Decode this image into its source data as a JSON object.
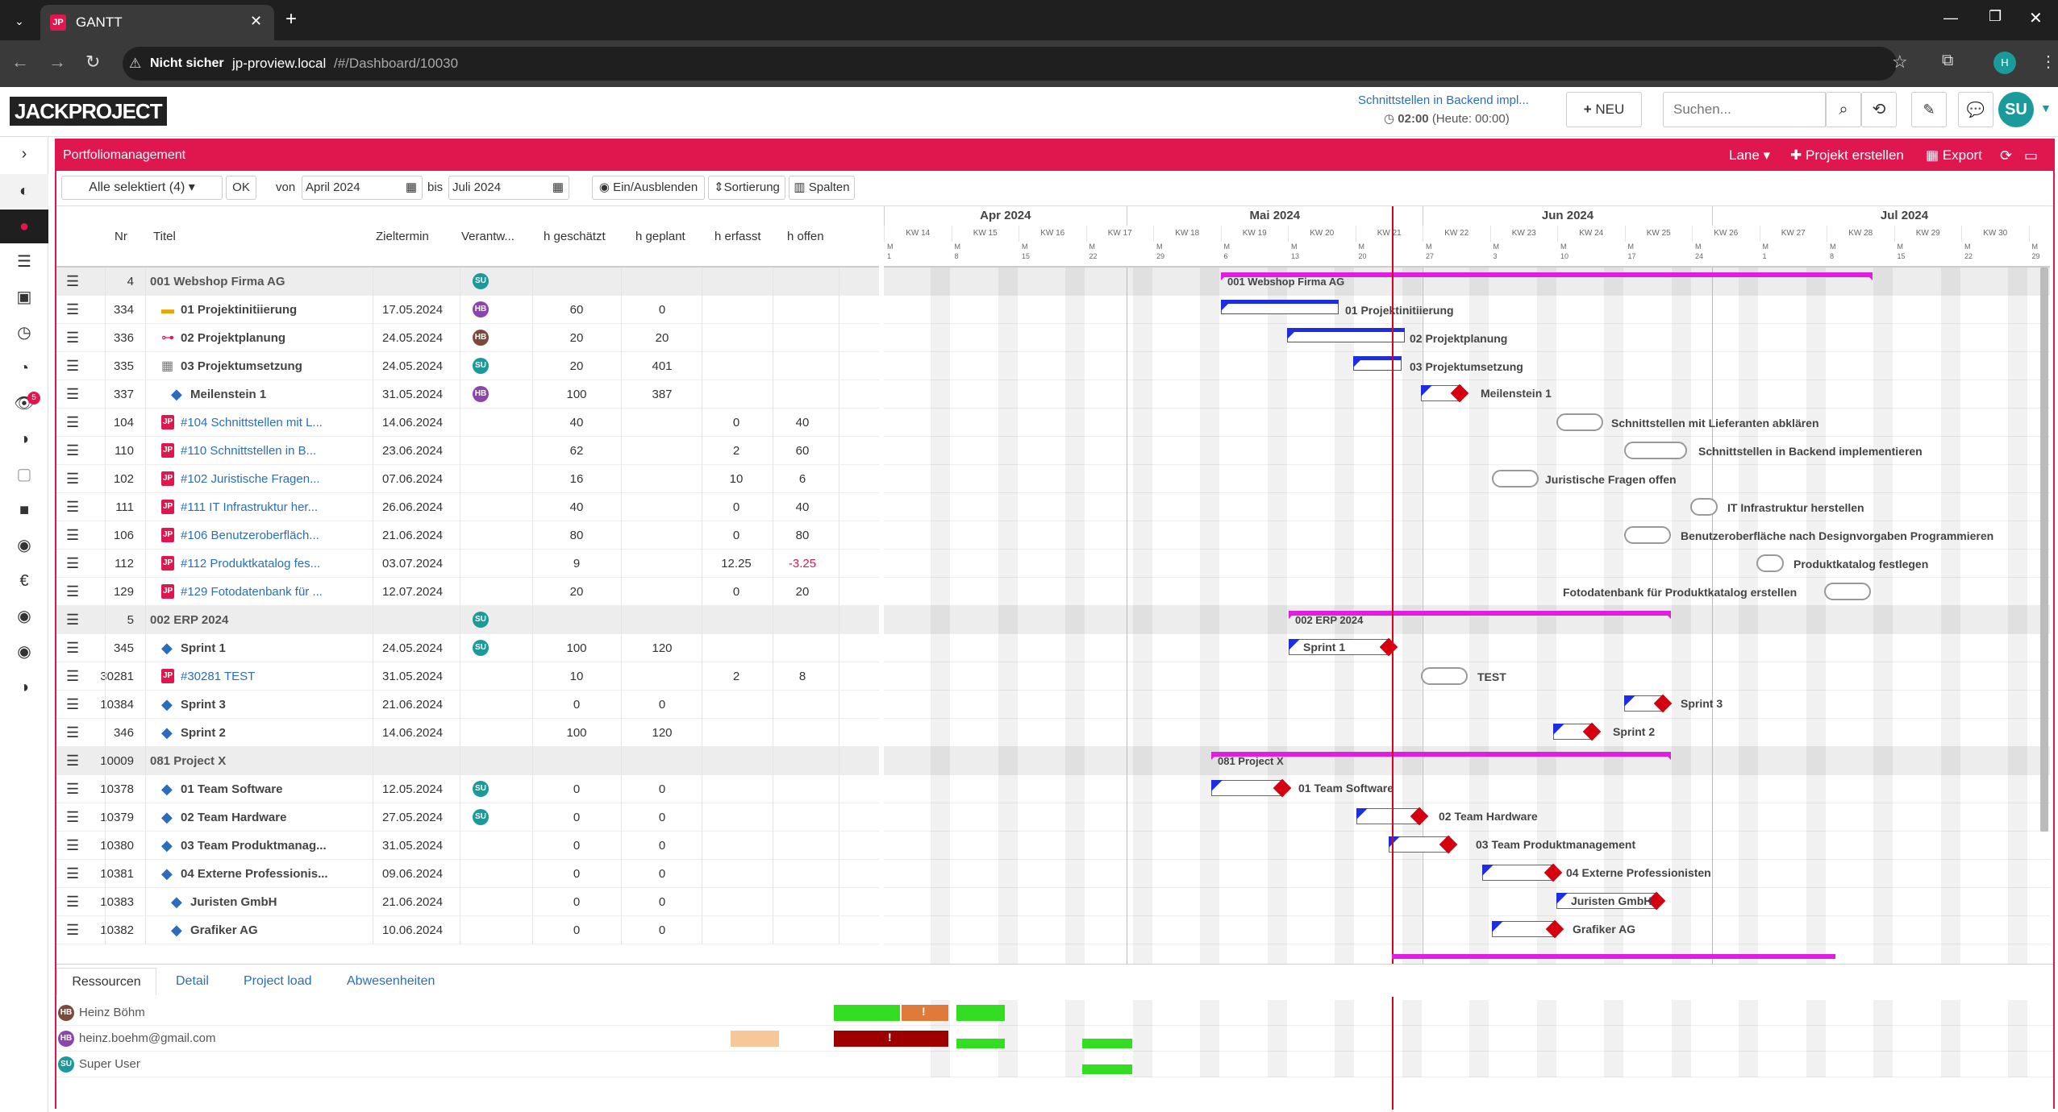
{
  "browser": {
    "tab_title": "GANTT",
    "insecure_label": "Nicht sicher",
    "url_host": "jp-proview.local",
    "url_path": "/#/Dashboard/10030",
    "profile_initial": "H"
  },
  "header": {
    "logo_text": "JACKPROJECT",
    "timer_task": "Schnittstellen in Backend impl...",
    "timer_value": "02:00",
    "timer_today": "(Heute: 00:00)",
    "new_button": "NEU",
    "search_placeholder": "Suchen...",
    "user_initials": "SU"
  },
  "rail": {
    "notification_count": "5"
  },
  "titlebar": {
    "title": "Portfoliomanagement",
    "lane_label": "Lane",
    "create_project": "Projekt erstellen",
    "export_label": "Export"
  },
  "toolbar": {
    "selection": "Alle selektiert (4)",
    "ok": "OK",
    "from_label": "von",
    "from_value": "April 2024",
    "to_label": "bis",
    "to_value": "Juli 2024",
    "toggle": "Ein/Ausblenden",
    "sort": "Sortierung",
    "columns": "Spalten"
  },
  "columns": [
    "Nr",
    "Titel",
    "Zieltermin",
    "Verantw...",
    "h geschätzt",
    "h geplant",
    "h erfasst",
    "h offen"
  ],
  "rows": [
    {
      "nr": "4",
      "title": "001 Webshop Firma AG",
      "date": "",
      "owner": "SU",
      "oc": "#1a9a9a",
      "est": "",
      "plan": "",
      "rec": "",
      "open": "",
      "group": true,
      "indent": 0,
      "icon": ""
    },
    {
      "nr": "334",
      "title": "01 Projektinitiierung",
      "date": "17.05.2024",
      "owner": "HB",
      "oc": "#8e44ad",
      "est": "60",
      "plan": "0",
      "rec": "",
      "open": "",
      "indent": 1,
      "icon": "folder"
    },
    {
      "nr": "336",
      "title": "02 Projektplanung",
      "date": "24.05.2024",
      "owner": "HB",
      "oc": "#7b4a3a",
      "est": "20",
      "plan": "20",
      "rec": "",
      "open": "",
      "indent": 1,
      "icon": "tree"
    },
    {
      "nr": "335",
      "title": "03 Projektumsetzung",
      "date": "24.05.2024",
      "owner": "SU",
      "oc": "#1a9a9a",
      "est": "20",
      "plan": "401",
      "rec": "",
      "open": "",
      "indent": 1,
      "icon": "grid"
    },
    {
      "nr": "337",
      "title": "Meilenstein 1",
      "date": "31.05.2024",
      "owner": "HB",
      "oc": "#8e44ad",
      "est": "100",
      "plan": "387",
      "rec": "",
      "open": "",
      "indent": 2,
      "icon": "diamond"
    },
    {
      "nr": "104",
      "title": "#104 Schnittstellen mit L...",
      "date": "14.06.2024",
      "owner": "",
      "oc": "",
      "est": "40",
      "plan": "",
      "rec": "0",
      "open": "40",
      "indent": 1,
      "icon": "jp",
      "link": true
    },
    {
      "nr": "110",
      "title": "#110 Schnittstellen in B...",
      "date": "23.06.2024",
      "owner": "",
      "oc": "",
      "est": "62",
      "plan": "",
      "rec": "2",
      "open": "60",
      "indent": 1,
      "icon": "jp",
      "link": true
    },
    {
      "nr": "102",
      "title": "#102 Juristische Fragen...",
      "date": "07.06.2024",
      "owner": "",
      "oc": "",
      "est": "16",
      "plan": "",
      "rec": "10",
      "open": "6",
      "indent": 1,
      "icon": "jp",
      "link": true
    },
    {
      "nr": "111",
      "title": "#111 IT Infrastruktur her...",
      "date": "26.06.2024",
      "owner": "",
      "oc": "",
      "est": "40",
      "plan": "",
      "rec": "0",
      "open": "40",
      "indent": 1,
      "icon": "jp",
      "link": true
    },
    {
      "nr": "106",
      "title": "#106 Benutzeroberfläch...",
      "date": "21.06.2024",
      "owner": "",
      "oc": "",
      "est": "80",
      "plan": "",
      "rec": "0",
      "open": "80",
      "indent": 1,
      "icon": "jp",
      "link": true
    },
    {
      "nr": "112",
      "title": "#112 Produktkatalog fes...",
      "date": "03.07.2024",
      "owner": "",
      "oc": "",
      "est": "9",
      "plan": "",
      "rec": "12.25",
      "open": "-3.25",
      "indent": 1,
      "icon": "jp",
      "link": true,
      "neg": true
    },
    {
      "nr": "129",
      "title": "#129 Fotodatenbank für ...",
      "date": "12.07.2024",
      "owner": "",
      "oc": "",
      "est": "20",
      "plan": "",
      "rec": "0",
      "open": "20",
      "indent": 1,
      "icon": "jp",
      "link": true
    },
    {
      "nr": "5",
      "title": "002 ERP 2024",
      "date": "",
      "owner": "SU",
      "oc": "#1a9a9a",
      "est": "",
      "plan": "",
      "rec": "",
      "open": "",
      "group": true,
      "indent": 0,
      "icon": ""
    },
    {
      "nr": "345",
      "title": "Sprint 1",
      "date": "24.05.2024",
      "owner": "SU",
      "oc": "#1a9a9a",
      "est": "100",
      "plan": "120",
      "rec": "",
      "open": "",
      "indent": 1,
      "icon": "diamond"
    },
    {
      "nr": "30281",
      "title": "#30281 TEST",
      "date": "31.05.2024",
      "owner": "",
      "oc": "",
      "est": "10",
      "plan": "",
      "rec": "2",
      "open": "8",
      "indent": 1,
      "icon": "jp",
      "link": true
    },
    {
      "nr": "10384",
      "title": "Sprint 3",
      "date": "21.06.2024",
      "owner": "",
      "oc": "",
      "est": "0",
      "plan": "0",
      "rec": "",
      "open": "",
      "indent": 1,
      "icon": "diamond"
    },
    {
      "nr": "346",
      "title": "Sprint 2",
      "date": "14.06.2024",
      "owner": "",
      "oc": "",
      "est": "100",
      "plan": "120",
      "rec": "",
      "open": "",
      "indent": 1,
      "icon": "diamond"
    },
    {
      "nr": "10009",
      "title": "081 Project X",
      "date": "",
      "owner": "",
      "oc": "",
      "est": "",
      "plan": "",
      "rec": "",
      "open": "",
      "group": true,
      "indent": 0,
      "icon": ""
    },
    {
      "nr": "10378",
      "title": "01 Team Software",
      "date": "12.05.2024",
      "owner": "SU",
      "oc": "#1a9a9a",
      "est": "0",
      "plan": "0",
      "rec": "",
      "open": "",
      "indent": 1,
      "icon": "diamond"
    },
    {
      "nr": "10379",
      "title": "02 Team Hardware",
      "date": "27.05.2024",
      "owner": "SU",
      "oc": "#1a9a9a",
      "est": "0",
      "plan": "0",
      "rec": "",
      "open": "",
      "indent": 1,
      "icon": "diamond"
    },
    {
      "nr": "10380",
      "title": "03 Team Produktmanag...",
      "date": "31.05.2024",
      "owner": "",
      "oc": "",
      "est": "0",
      "plan": "0",
      "rec": "",
      "open": "",
      "indent": 1,
      "icon": "diamond"
    },
    {
      "nr": "10381",
      "title": "04 Externe Professionis...",
      "date": "09.06.2024",
      "owner": "",
      "oc": "",
      "est": "0",
      "plan": "0",
      "rec": "",
      "open": "",
      "indent": 1,
      "icon": "diamond"
    },
    {
      "nr": "10383",
      "title": "Juristen GmbH",
      "date": "21.06.2024",
      "owner": "",
      "oc": "",
      "est": "0",
      "plan": "0",
      "rec": "",
      "open": "",
      "indent": 2,
      "icon": "diamond"
    },
    {
      "nr": "10382",
      "title": "Grafiker AG",
      "date": "10.06.2024",
      "owner": "",
      "oc": "",
      "est": "0",
      "plan": "0",
      "rec": "",
      "open": "",
      "indent": 2,
      "icon": "diamond"
    }
  ],
  "gantt": {
    "months": [
      "Apr 2024",
      "Mai 2024",
      "Jun 2024",
      "Jul 2024"
    ],
    "weeks": [
      "KW 14",
      "KW 15",
      "KW 16",
      "KW 17",
      "KW 18",
      "KW 19",
      "KW 20",
      "KW 21",
      "KW 22",
      "KW 23",
      "KW 24",
      "KW 25",
      "KW 26",
      "KW 27",
      "KW 28",
      "KW 29",
      "KW 30",
      "KW"
    ],
    "day_labels": [
      "1",
      "8",
      "15",
      "22",
      "29",
      "6",
      "13",
      "20",
      "27",
      "3",
      "10",
      "17",
      "24",
      "1",
      "8",
      "15",
      "22",
      "29"
    ],
    "bar_labels": [
      "001 Webshop Firma AG",
      "01 Projektinitiierung",
      "02 Projektplanung",
      "03 Projektumsetzung",
      "Meilenstein 1",
      "Schnittstellen mit Lieferanten abklären",
      "Schnittstellen in Backend implementieren",
      "Juristische Fragen offen",
      "IT Infrastruktur herstellen",
      "Benutzeroberfläche nach Designvorgaben Programmieren",
      "Produktkatalog festlegen",
      "Fotodatenbank für Produktkatalog erstellen",
      "002 ERP 2024",
      "Sprint 1",
      "TEST",
      "Sprint 3",
      "Sprint 2",
      "081 Project X",
      "01 Team Software",
      "02 Team Hardware",
      "03 Team Produktmanagement",
      "04 Externe Professionisten",
      "Juristen GmbH",
      "Grafiker AG"
    ]
  },
  "bottom": {
    "tabs": [
      "Ressourcen",
      "Detail",
      "Project load",
      "Abwesenheiten"
    ],
    "resources": [
      {
        "initials": "HB",
        "name": "Heinz Böhm",
        "color": "#7b4a3a"
      },
      {
        "initials": "HB",
        "name": "heinz.boehm@gmail.com",
        "color": "#8e44ad"
      },
      {
        "initials": "SU",
        "name": "Super User",
        "color": "#1a9a9a"
      }
    ],
    "warning_mark": "!"
  }
}
